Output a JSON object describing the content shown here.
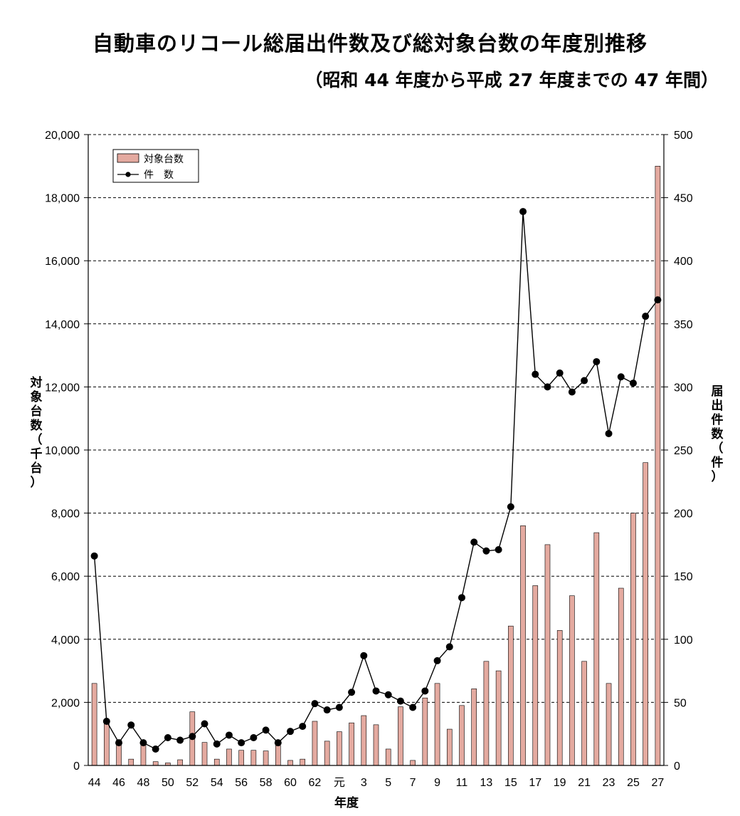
{
  "chart_data": {
    "type": "bar+line",
    "title": "自動車のリコール総届出件数及び総対象台数の年度別推移",
    "subtitle": "（昭和 44 年度から平成 27 年度までの 47 年間）",
    "xlabel": "年度",
    "ylabel_left": "対象台数（千台）",
    "ylabel_right": "届出件数（件）",
    "ylim_left": [
      0,
      20000
    ],
    "ylim_right": [
      0,
      500
    ],
    "yticks_left": [
      "0",
      "2,000",
      "4,000",
      "6,000",
      "8,000",
      "10,000",
      "12,000",
      "14,000",
      "16,000",
      "18,000",
      "20,000"
    ],
    "yticks_right": [
      "0",
      "50",
      "100",
      "150",
      "200",
      "250",
      "300",
      "350",
      "400",
      "450",
      "500"
    ],
    "grid": "horizontal-dashed",
    "legend_position": "top-left",
    "x_tick_labels": [
      "44",
      "",
      "46",
      "",
      "48",
      "",
      "50",
      "",
      "52",
      "",
      "54",
      "",
      "56",
      "",
      "58",
      "",
      "60",
      "",
      "62",
      "",
      "元",
      "",
      "3",
      "",
      "5",
      "",
      "7",
      "",
      "9",
      "",
      "11",
      "",
      "13",
      "",
      "15",
      "",
      "17",
      "",
      "19",
      "",
      "21",
      "",
      "23",
      "",
      "25",
      "",
      "27"
    ],
    "series": [
      {
        "name": "対象台数",
        "kind": "bar",
        "color": "#e4aaa0",
        "values": [
          2600,
          1400,
          800,
          200,
          700,
          120,
          80,
          180,
          1700,
          730,
          200,
          520,
          480,
          480,
          460,
          630,
          160,
          200,
          1400,
          770,
          1070,
          1350,
          1580,
          1290,
          520,
          1860,
          160,
          2140,
          2600,
          1150,
          1900,
          2430,
          3300,
          3000,
          4420,
          7600,
          5700,
          7000,
          4280,
          5380,
          3300,
          7380,
          2600,
          5620,
          8000,
          9600,
          19000
        ]
      },
      {
        "name": "件　数",
        "kind": "line",
        "color": "#000000",
        "values": [
          166,
          35,
          18,
          32,
          18,
          13,
          22,
          20,
          23,
          33,
          17,
          24,
          18,
          22,
          28,
          18,
          27,
          31,
          49,
          44,
          46,
          58,
          87,
          59,
          56,
          51,
          46,
          59,
          83,
          94,
          133,
          177,
          170,
          171,
          205,
          439,
          310,
          300,
          311,
          296,
          305,
          320,
          263,
          308,
          303,
          356,
          369
        ]
      }
    ]
  }
}
